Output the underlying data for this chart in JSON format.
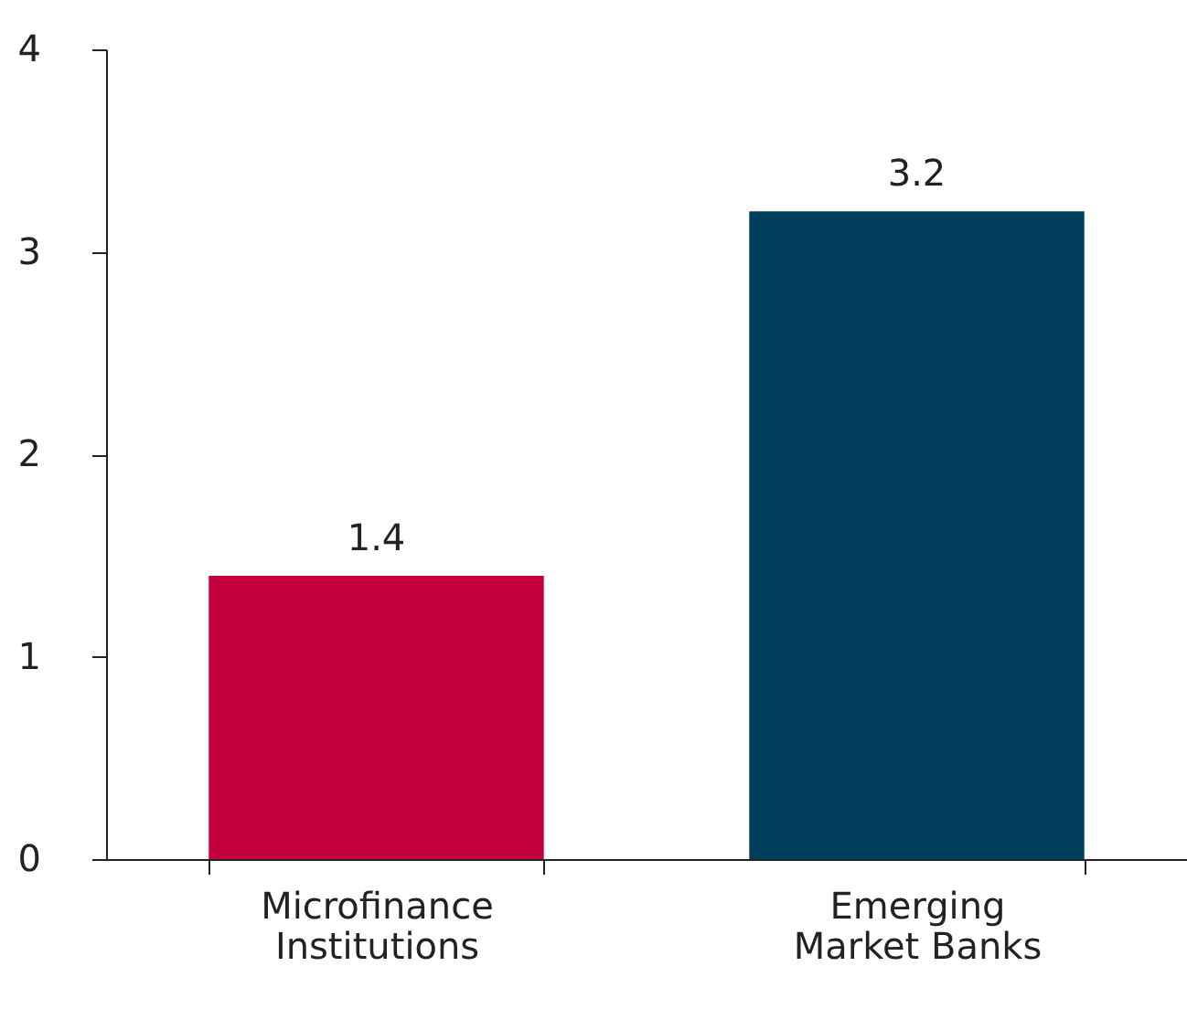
{
  "chart_data": {
    "type": "bar",
    "categories": [
      "Microfinance Institutions",
      "Emerging Market Banks"
    ],
    "values": [
      1.4,
      3.2
    ],
    "colors": [
      "#c5003e",
      "#003f5c"
    ],
    "ylim": [
      0,
      4
    ],
    "yticks": [
      0,
      1,
      2,
      3,
      4
    ],
    "grid": false,
    "data_labels": true
  }
}
